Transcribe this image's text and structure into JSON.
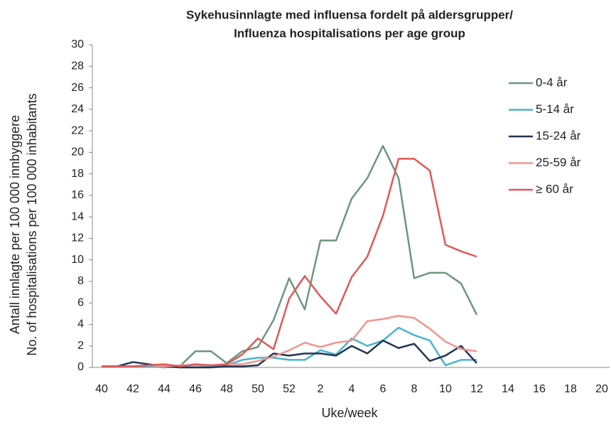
{
  "chart_data": {
    "type": "line",
    "title": [
      "Sykehusinnlagte med influensa fordelt på aldersgrupper/",
      "Influenza hospitalisations per age group"
    ],
    "y_label": [
      "Antall innlagte per 100 000 innbyggere",
      "No. of hospitalisations per 100 000 inhabitants"
    ],
    "x_label": "Uke/week",
    "categories": [
      "40",
      null,
      "42",
      null,
      "44",
      null,
      "46",
      null,
      "48",
      null,
      "50",
      null,
      "52",
      null,
      "2",
      null,
      "4",
      null,
      "6",
      null,
      "8",
      null,
      "10",
      null,
      "12",
      null,
      "14",
      null,
      "16",
      null,
      "18",
      null,
      "20"
    ],
    "ylim": [
      0,
      30
    ],
    "yticks": [
      0,
      2,
      4,
      6,
      8,
      10,
      12,
      14,
      16,
      18,
      20,
      22,
      24,
      26,
      28,
      30
    ],
    "grid": false,
    "series": [
      {
        "name": "0-4 år",
        "color": "#6f957f",
        "values": [
          0.1,
          0.1,
          0.1,
          0.2,
          0,
          0.1,
          1.5,
          1.5,
          0.4,
          1.5,
          1.9,
          4.4,
          8.3,
          5.4,
          11.8,
          11.8,
          15.7,
          17.6,
          20.6,
          17.6,
          8.3,
          8.8,
          8.8,
          7.8,
          4.9,
          null,
          null,
          null,
          null,
          null,
          null,
          null,
          null
        ]
      },
      {
        "name": "5-14 år",
        "color": "#4bb3cf",
        "values": [
          0.1,
          0.1,
          0.1,
          0.1,
          0,
          0.1,
          0.2,
          0.1,
          0.2,
          0.7,
          0.9,
          0.9,
          0.7,
          0.7,
          1.6,
          1.2,
          2.7,
          2.0,
          2.5,
          3.7,
          3.0,
          2.5,
          0.2,
          0.7,
          0.7,
          null,
          null,
          null,
          null,
          null,
          null,
          null,
          null
        ]
      },
      {
        "name": "15-24 år",
        "color": "#223553",
        "values": [
          0.1,
          0.1,
          0.5,
          0.3,
          0.1,
          0,
          0,
          0,
          0.1,
          0.1,
          0.2,
          1.3,
          1.1,
          1.3,
          1.3,
          1.1,
          2.0,
          1.3,
          2.5,
          1.8,
          2.2,
          0.6,
          1.1,
          2.0,
          0.4,
          null,
          null,
          null,
          null,
          null,
          null,
          null,
          null
        ]
      },
      {
        "name": "25-59 år",
        "color": "#f0958d",
        "values": [
          0.1,
          0.1,
          0.1,
          0.2,
          0.1,
          0.2,
          0.2,
          0.2,
          0.3,
          0.3,
          0.6,
          1.0,
          1.6,
          2.3,
          1.9,
          2.3,
          2.5,
          4.3,
          4.5,
          4.8,
          4.6,
          3.6,
          2.4,
          1.7,
          1.5,
          null,
          null,
          null,
          null,
          null,
          null,
          null,
          null
        ]
      },
      {
        "name": "≥ 60 år",
        "color": "#e05858",
        "values": [
          0.1,
          0.1,
          0.1,
          0.2,
          0.3,
          0.1,
          0.3,
          0.2,
          0.3,
          1.2,
          2.7,
          1.7,
          6.4,
          8.5,
          6.6,
          5.0,
          8.4,
          10.3,
          14.1,
          19.4,
          19.4,
          18.3,
          11.4,
          10.8,
          10.3,
          null,
          null,
          null,
          null,
          null,
          null,
          null,
          null
        ]
      }
    ]
  }
}
